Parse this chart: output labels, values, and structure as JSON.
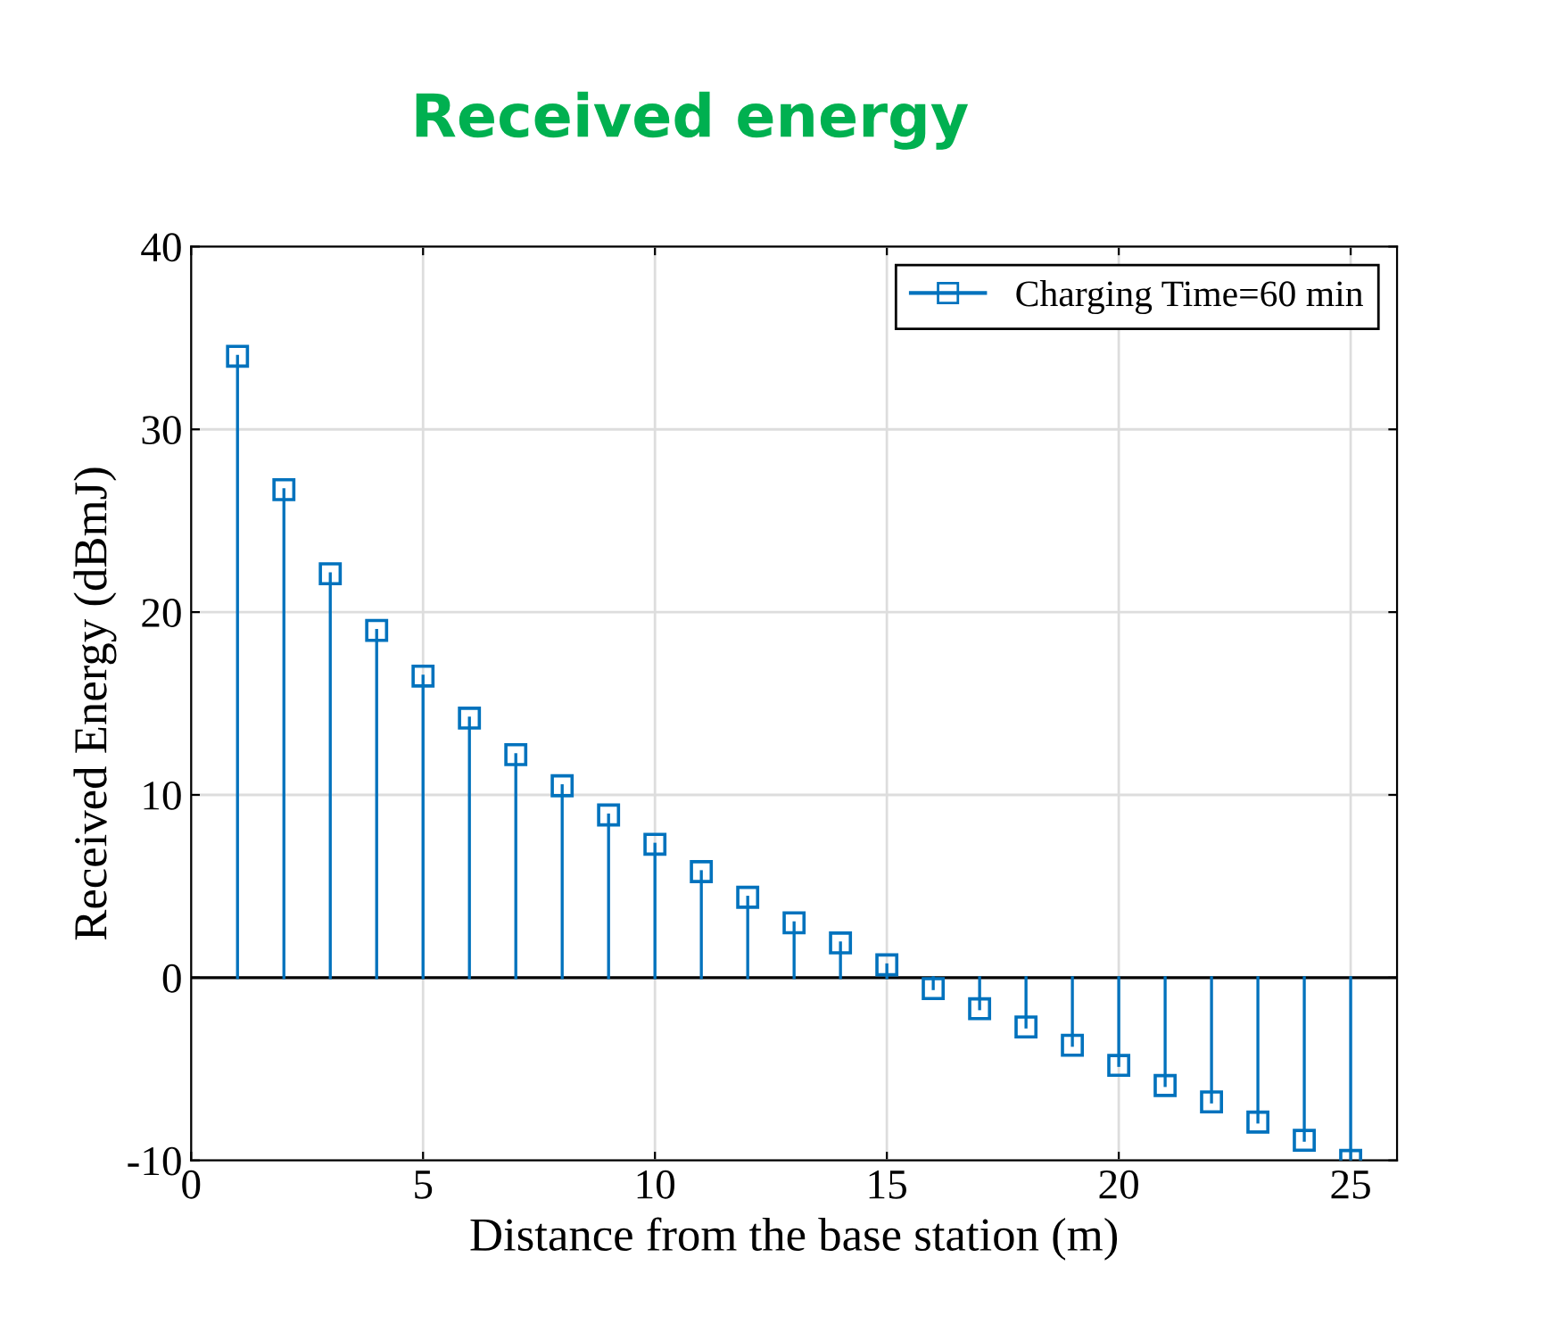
{
  "chart_data": {
    "type": "lollipop",
    "title": "Received energy",
    "xlabel": "Distance from the base station (m)",
    "ylabel": "Received Energy (dBmJ)",
    "x": [
      1,
      2,
      3,
      4,
      5,
      6,
      7,
      8,
      9,
      10,
      11,
      12,
      13,
      14,
      15,
      16,
      17,
      18,
      19,
      20,
      21,
      22,
      23,
      24,
      25
    ],
    "series": [
      {
        "name": "Charging Time=60 min",
        "color": "#0072bd",
        "values": [
          34.0,
          26.7,
          22.1,
          19.0,
          16.5,
          14.2,
          12.2,
          10.5,
          8.9,
          7.3,
          5.8,
          4.4,
          3.0,
          1.9,
          0.7,
          -0.6,
          -1.7,
          -2.7,
          -3.7,
          -4.8,
          -5.9,
          -6.8,
          -7.9,
          -8.9,
          -10.0
        ]
      }
    ],
    "xlim": [
      0,
      26
    ],
    "xticks": [
      0,
      5,
      10,
      15,
      20,
      25
    ],
    "ylim": [
      -10,
      40
    ],
    "yticks": [
      -10,
      0,
      10,
      20,
      30,
      40
    ],
    "grid": true,
    "legend": "top right",
    "marker": "square"
  }
}
